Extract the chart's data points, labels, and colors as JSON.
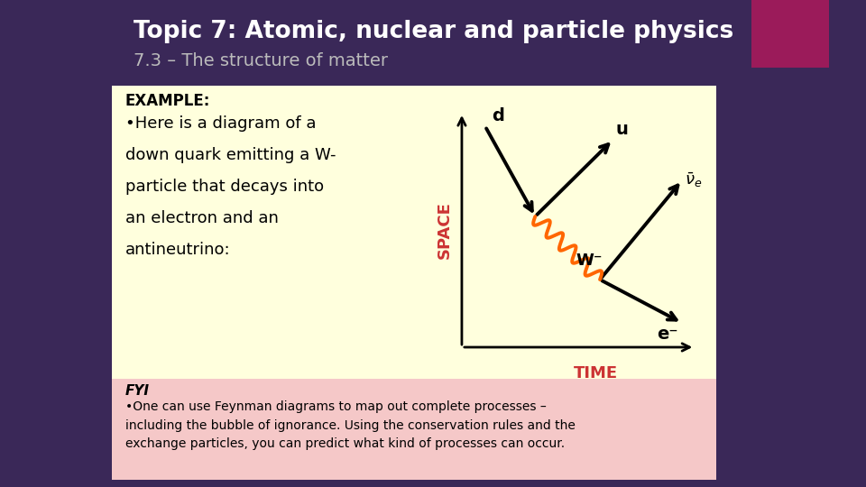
{
  "title_line1": "Topic 7: Atomic, nuclear and particle physics",
  "title_line2": "7.3 – The structure of matter",
  "bg_color": "#3a2858",
  "title_color": "#ffffff",
  "subtitle_color": "#cccccc",
  "top_right_rect_color": "#9b1b5a",
  "example_box_color": "#ffffdd",
  "fyi_box_color": "#f5c8c8",
  "example_title": "EXAMPLE:",
  "example_text_line1": "•Here is a diagram of a",
  "example_text_line2": "down quark emitting a W-",
  "example_text_line3": "particle that decays into",
  "example_text_line4": "an electron and an",
  "example_text_line5": "antineutrino:",
  "fyi_title": "FYI",
  "fyi_text": "•One can use Feynman diagrams to map out complete processes –\nincluding the bubble of ignorance. Using the conservation rules and the\nexchange particles, you can predict what kind of processes can occur.",
  "space_label": "SPACE",
  "time_label": "TIME",
  "space_label_color": "#cc3333",
  "time_label_color": "#cc3333",
  "particle_d": "d",
  "particle_u": "u",
  "particle_W": "W⁻",
  "particle_e": "e⁻",
  "arrow_color": "#000000",
  "wavy_color": "#ff6600"
}
